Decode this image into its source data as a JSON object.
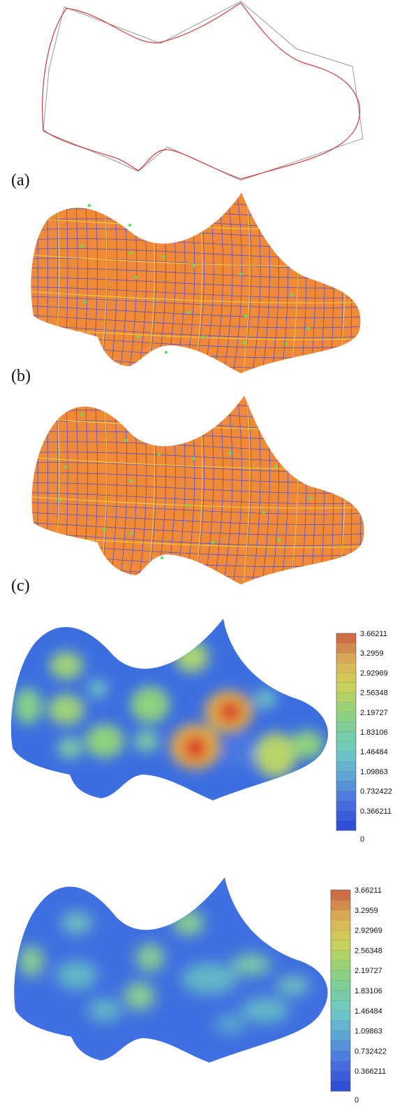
{
  "labels": {
    "a": "(a)",
    "b": "(b)",
    "c": "(c)"
  },
  "colorbar": {
    "ticks": [
      "3.66211",
      "3.2959",
      "2.92969",
      "2.56348",
      "2.19727",
      "1.83106",
      "1.46484",
      "1.09863",
      "0.732422",
      "0.366211",
      "0"
    ],
    "min": 0,
    "max": 3.66211,
    "levels": 20
  },
  "colors": {
    "outline": "#d33c3c",
    "outline_secondary": "#9a9a9a",
    "surface": "#f08a38",
    "grid_u": "#5a4fc8",
    "grid_v": "#f5d23a",
    "control_point": "#5be35b",
    "heat_low": "#2f4fd6",
    "heat_high": "#d2402a"
  }
}
